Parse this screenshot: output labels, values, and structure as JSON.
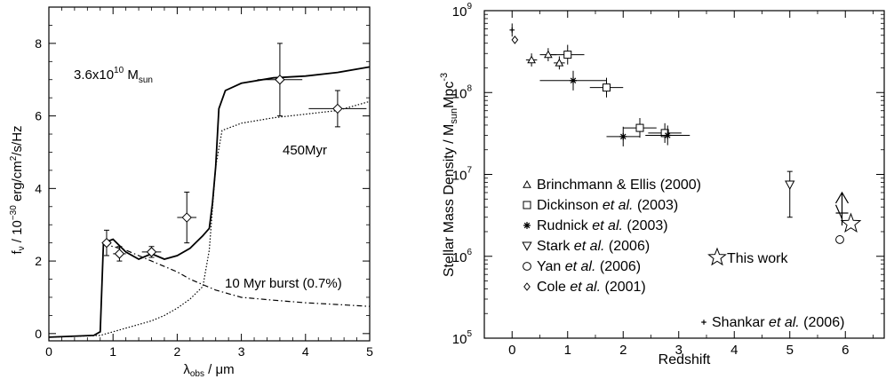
{
  "chart_data": [
    {
      "type": "line",
      "title": "",
      "xlabel": "λobs / μm",
      "ylabel": "fν / 10−30 erg/cm2/s/Hz",
      "xlim": [
        0,
        5
      ],
      "ylim": [
        -0.2,
        9
      ],
      "xticks": [
        "0",
        "1",
        "2",
        "3",
        "4",
        "5"
      ],
      "yticks": [
        "0",
        "2",
        "4",
        "6",
        "8"
      ],
      "annotations": {
        "mass": "3.6x10",
        "mass_exp": "10",
        "mass_unit": " M",
        "mass_sub": "sun",
        "age": "450Myr",
        "burst": "10 Myr burst (0.7%)"
      },
      "series": [
        {
          "style": "solid",
          "x": [
            0.0,
            0.7,
            0.8,
            0.85,
            1.0,
            1.2,
            1.4,
            1.6,
            1.8,
            2.0,
            2.2,
            2.4,
            2.5,
            2.55,
            2.6,
            2.65,
            2.75,
            3.0,
            3.5,
            4.0,
            4.5,
            5.0
          ],
          "y": [
            -0.1,
            -0.05,
            0.05,
            2.5,
            2.6,
            2.25,
            2.05,
            2.2,
            2.05,
            2.15,
            2.35,
            2.7,
            2.9,
            3.6,
            4.6,
            6.2,
            6.7,
            6.9,
            7.05,
            7.1,
            7.2,
            7.35
          ]
        },
        {
          "style": "dotted",
          "x": [
            0.0,
            0.8,
            0.9,
            1.0,
            1.2,
            1.4,
            1.6,
            1.8,
            2.0,
            2.2,
            2.4,
            2.5,
            2.6,
            2.7,
            3.0,
            3.5,
            4.0,
            4.5,
            5.0
          ],
          "y": [
            -0.1,
            -0.05,
            0.0,
            0.05,
            0.15,
            0.25,
            0.35,
            0.5,
            0.7,
            0.95,
            1.3,
            2.3,
            4.6,
            5.6,
            5.8,
            5.95,
            6.05,
            6.15,
            6.4
          ]
        },
        {
          "style": "dash-dot",
          "x": [
            0.85,
            1.0,
            1.2,
            1.4,
            1.6,
            1.8,
            2.0,
            2.2,
            2.4,
            2.6,
            2.8,
            3.0,
            3.5,
            4.0,
            4.5,
            5.0
          ],
          "y": [
            2.45,
            2.4,
            2.3,
            2.15,
            2.0,
            1.85,
            1.7,
            1.5,
            1.35,
            1.2,
            1.1,
            1.0,
            0.92,
            0.85,
            0.8,
            0.75
          ]
        }
      ],
      "photometry": [
        {
          "x": 0.9,
          "y": 2.5,
          "xerr": 0.05,
          "yerr": 0.35,
          "marker": "diamond"
        },
        {
          "x": 1.1,
          "y": 2.2,
          "xerr": 0.1,
          "yerr": 0.2,
          "marker": "diamond"
        },
        {
          "x": 1.6,
          "y": 2.25,
          "xerr": 0.15,
          "yerr": 0.15,
          "marker": "diamond"
        },
        {
          "x": 2.15,
          "y": 3.2,
          "xerr": 0.15,
          "yerr": 0.7,
          "marker": "diamond"
        },
        {
          "x": 3.6,
          "y": 7.0,
          "xerr": 0.35,
          "yerr": 1.0,
          "marker": "diamond"
        },
        {
          "x": 4.5,
          "y": 6.2,
          "xerr": 0.45,
          "yerr": 0.5,
          "marker": "diamond"
        }
      ]
    },
    {
      "type": "scatter",
      "title": "",
      "xlabel": "Redshift",
      "ylabel": "Stellar Mass Density / M",
      "ylabel_sub": "sun",
      "ylabel_unit": "Mpc",
      "ylabel_exp": "-3",
      "xlim": [
        -0.5,
        6.7
      ],
      "ylim_log10": [
        5,
        9
      ],
      "xticks": [
        "0",
        "1",
        "2",
        "3",
        "4",
        "5",
        "6"
      ],
      "yticks": [
        "10",
        "10",
        "10",
        "10",
        "10"
      ],
      "ytick_exps": [
        "5",
        "6",
        "7",
        "8",
        "9"
      ],
      "legend_position": "bottom-left",
      "legend": [
        {
          "marker": "triangle",
          "text": "Brinchmann & Ellis (2000)",
          "parts": [
            "Brinchmann & Ellis (2000)"
          ]
        },
        {
          "marker": "square",
          "text": "Dickinson et al. (2003)",
          "parts": [
            "Dickinson ",
            "et al.",
            " (2003)"
          ]
        },
        {
          "marker": "asterisk",
          "text": "Rudnick et al. (2003)",
          "parts": [
            "Rudnick ",
            "et al.",
            " (2003)"
          ]
        },
        {
          "marker": "down-triangle",
          "text": "Stark et al. (2006)",
          "parts": [
            "Stark ",
            "et al.",
            " (2006)"
          ]
        },
        {
          "marker": "circle",
          "text": "Yan et al. (2006)",
          "parts": [
            "Yan ",
            "et al.",
            " (2006)"
          ]
        },
        {
          "marker": "diamond",
          "text": "Cole et al. (2001)",
          "parts": [
            "Cole ",
            "et al.",
            " (2001)"
          ]
        },
        {
          "marker": "star",
          "text": "This work",
          "parts": [
            "This work"
          ]
        },
        {
          "marker": "plus",
          "text": "Shankar et al. (2006)",
          "parts": [
            "Shankar ",
            "et al.",
            " (2006)"
          ]
        }
      ],
      "series": [
        {
          "name": "Brinchmann & Ellis (2000)",
          "marker": "triangle",
          "points": [
            [
              0.35,
              250000000.0,
              0.1
            ],
            [
              0.65,
              290000000.0,
              0.15
            ],
            [
              0.85,
              230000000.0,
              0.1
            ]
          ]
        },
        {
          "name": "Dickinson et al. (2003)",
          "marker": "square",
          "points": [
            [
              1.0,
              290000000.0,
              0.3
            ],
            [
              1.7,
              115000000.0,
              0.3
            ],
            [
              2.3,
              37000000.0,
              0.3
            ],
            [
              2.75,
              32000000.0,
              0.3
            ]
          ]
        },
        {
          "name": "Rudnick et al. (2003)",
          "marker": "asterisk",
          "points": [
            [
              1.1,
              140000000.0,
              0.6
            ],
            [
              2.0,
              29000000.0,
              0.3
            ],
            [
              2.8,
              30000000.0,
              0.4
            ]
          ]
        },
        {
          "name": "Stark et al. (2006)",
          "marker": "down-triangle",
          "points": [
            [
              5.0,
              7500000.0,
              0.0
            ]
          ]
        },
        {
          "name": "Yan et al. (2006)",
          "marker": "circle",
          "points": [
            [
              5.9,
              1600000.0,
              0.0
            ]
          ]
        },
        {
          "name": "Cole et al. (2001)",
          "marker": "diamond",
          "points": [
            [
              0.05,
              440000000.0,
              0.0
            ]
          ]
        },
        {
          "name": "Shankar et al. (2006)",
          "marker": "plus",
          "points": [
            [
              0.0,
              580000000.0,
              0.0
            ]
          ]
        },
        {
          "name": "This work",
          "marker": "star",
          "points": [
            [
              6.1,
              2500000.0,
              0.0
            ]
          ]
        }
      ]
    }
  ]
}
